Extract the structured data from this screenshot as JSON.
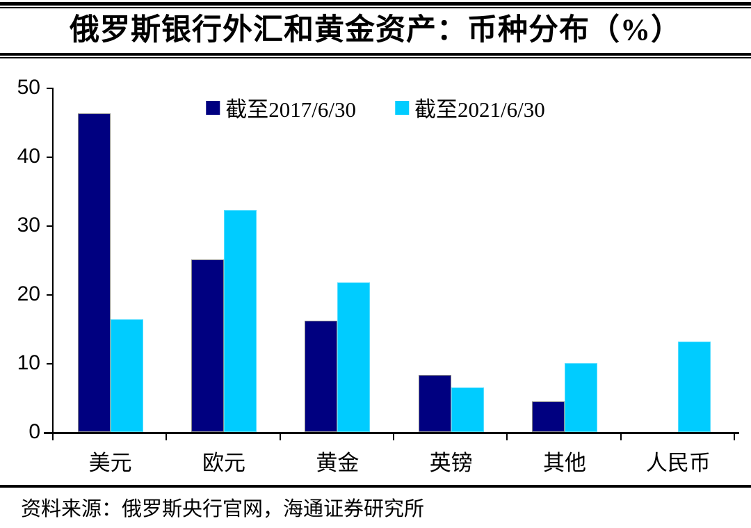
{
  "header": {
    "title": "俄罗斯银行外汇和黄金资产：币种分布（%）"
  },
  "chart_data": {
    "type": "bar",
    "title": "俄罗斯银行外汇和黄金资产：币种分布（%）",
    "categories": [
      "美元",
      "欧元",
      "黄金",
      "英镑",
      "其他",
      "人民币"
    ],
    "series": [
      {
        "name": "截至2017/6/30",
        "color": "#000080",
        "values": [
          46.3,
          25.1,
          16.2,
          8.3,
          4.4,
          0
        ]
      },
      {
        "name": "截至2021/6/30",
        "color": "#00CCFF",
        "values": [
          16.4,
          32.2,
          21.7,
          6.5,
          10.0,
          13.1
        ]
      }
    ],
    "xlabel": "",
    "ylabel": "",
    "ylim": [
      0,
      50
    ],
    "yticks": [
      0,
      10,
      20,
      30,
      40,
      50
    ],
    "grid": false,
    "legend_position": "top-center"
  },
  "footer": {
    "source": "资料来源：俄罗斯央行官网，海通证券研究所"
  },
  "colors": {
    "series_2017": "#000080",
    "series_2021": "#00CCFF",
    "axis": "#000000",
    "background": "#FFFFFF"
  }
}
